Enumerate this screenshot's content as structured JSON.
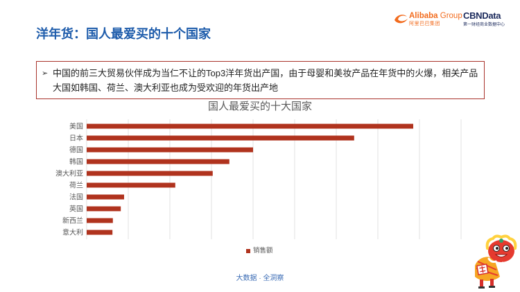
{
  "header": {
    "title": "洋年货：国人最爱买的十个国家",
    "alibaba_word": "Alibaba",
    "group_word": "Group",
    "alibaba_cn": "阿里巴巴集团",
    "cbn_name": "CBNData",
    "cbn_cn": "第一财经商业数据中心"
  },
  "summary": {
    "bullet": "➢",
    "text": "中国的前三大贸易伙伴成为当仁不让的Top3洋年货出产国，由于母婴和美妆产品在年货中的火爆，相关产品大国如韩国、荷兰、澳大利亚也成为受欢迎的年货出产地"
  },
  "chart_data": {
    "type": "bar",
    "orientation": "horizontal",
    "title": "国人最爱买的十大国家",
    "categories": [
      "美国",
      "日本",
      "德国",
      "韩国",
      "澳大利亚",
      "荷兰",
      "法国",
      "英国",
      "新西兰",
      "意大利"
    ],
    "series": [
      {
        "name": "销售额",
        "values": [
          7.85,
          6.43,
          4.0,
          3.43,
          3.03,
          2.13,
          0.9,
          0.82,
          0.63,
          0.62
        ],
        "color": "#B0331E"
      }
    ],
    "xlim": [
      0,
      9
    ],
    "grid": true,
    "legend": "bottom"
  },
  "footer": {
    "tagline": "大数据 · 全洞察"
  },
  "colors": {
    "title": "#1E5CAB",
    "bar": "#B0331E",
    "box_border": "#A8322A",
    "alibaba": "#F26B1D",
    "cbn": "#1B2A5C",
    "footer": "#3A6BB4"
  },
  "icons": {
    "alibaba_logo": "alibaba-smile-icon",
    "mascot": "lion-dance-mascot"
  }
}
